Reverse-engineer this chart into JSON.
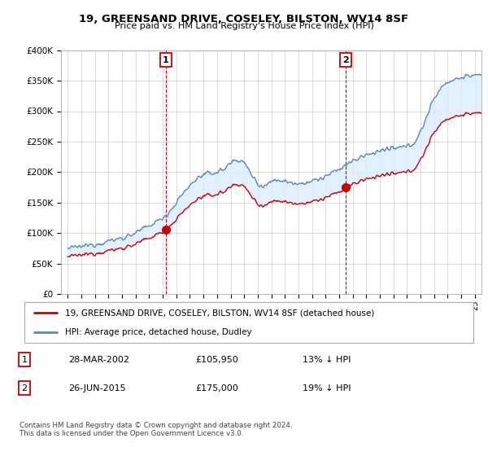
{
  "title": "19, GREENSAND DRIVE, COSELEY, BILSTON, WV14 8SF",
  "subtitle": "Price paid vs. HM Land Registry's House Price Index (HPI)",
  "yticks": [
    0,
    50000,
    100000,
    150000,
    200000,
    250000,
    300000,
    350000,
    400000
  ],
  "ytick_labels": [
    "£0",
    "£50K",
    "£100K",
    "£150K",
    "£200K",
    "£250K",
    "£300K",
    "£350K",
    "£400K"
  ],
  "xlim_start": 1994.5,
  "xlim_end": 2025.5,
  "ylim_min": 0,
  "ylim_max": 400000,
  "sale1_date": 2002.22,
  "sale1_price": 105950,
  "sale2_date": 2015.48,
  "sale2_price": 175000,
  "hpi_color": "#5588bb",
  "price_color": "#cc0000",
  "fill_color": "#ddeeff",
  "legend_label1": "19, GREENSAND DRIVE, COSELEY, BILSTON, WV14 8SF (detached house)",
  "legend_label2": "HPI: Average price, detached house, Dudley",
  "table_row1_num": "1",
  "table_row1_date": "28-MAR-2002",
  "table_row1_price": "£105,950",
  "table_row1_hpi": "13% ↓ HPI",
  "table_row2_num": "2",
  "table_row2_date": "26-JUN-2015",
  "table_row2_price": "£175,000",
  "table_row2_hpi": "19% ↓ HPI",
  "footer": "Contains HM Land Registry data © Crown copyright and database right 2024.\nThis data is licensed under the Open Government Licence v3.0.",
  "bg_color": "#ffffff",
  "grid_color": "#cccccc"
}
